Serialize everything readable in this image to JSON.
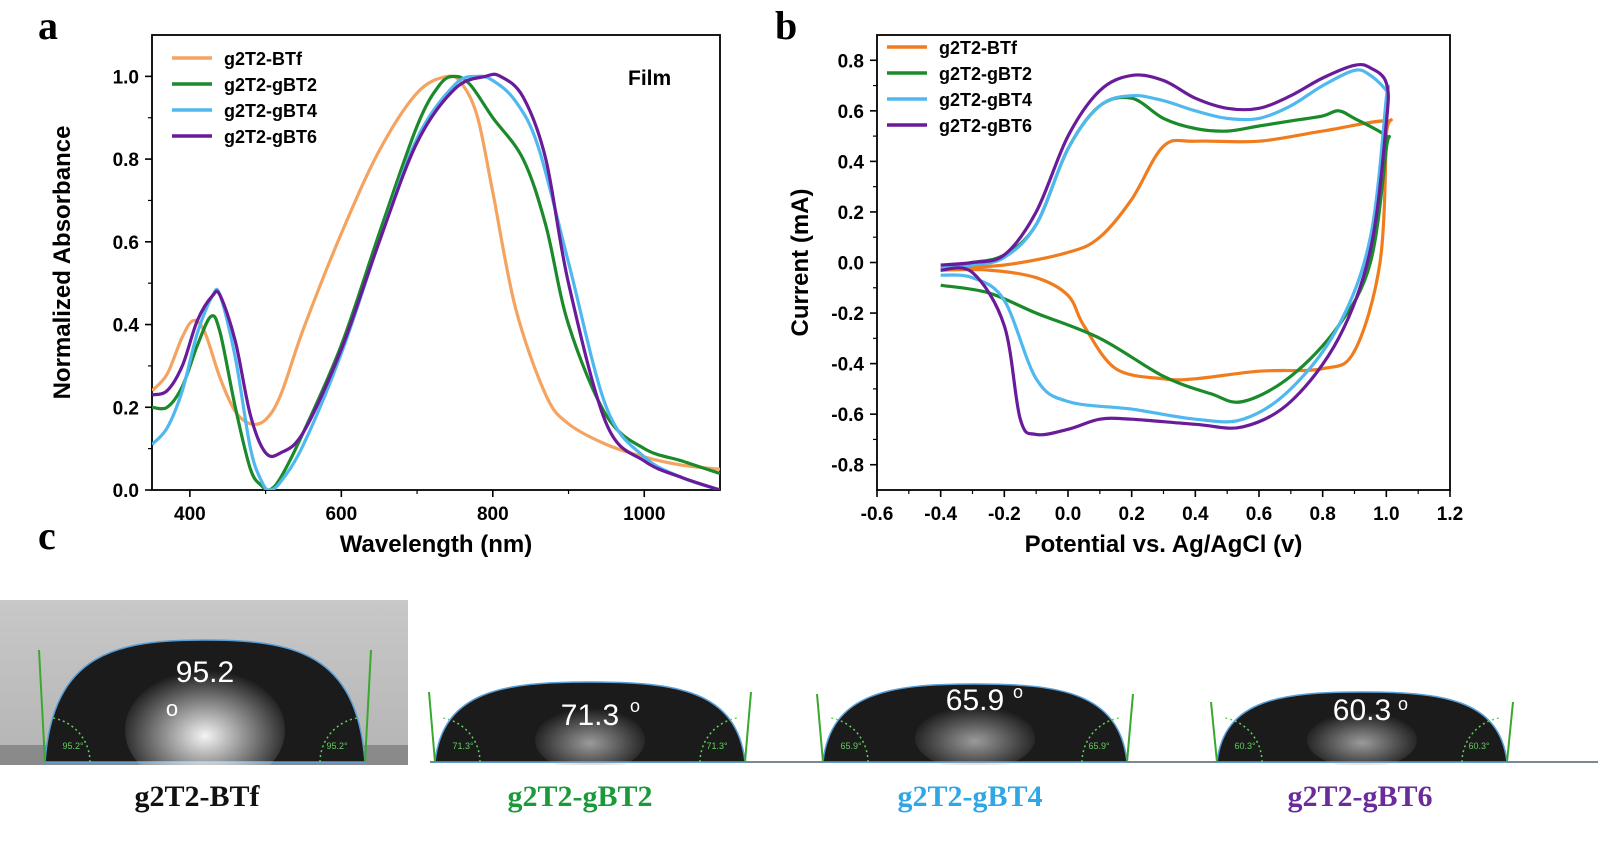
{
  "panel_labels": {
    "a": "a",
    "b": "b",
    "c": "c"
  },
  "chart_data": [
    {
      "type": "line",
      "panel": "a",
      "title": "",
      "annotation": "Film",
      "xlabel": "Wavelength (nm)",
      "ylabel": "Normalized Absorbance",
      "xlim": [
        350,
        1100
      ],
      "ylim": [
        0,
        1.1
      ],
      "xticks": [
        400,
        600,
        800,
        1000
      ],
      "yticks": [
        0.0,
        0.2,
        0.4,
        0.6,
        0.8,
        1.0
      ],
      "ytick_labels": [
        "0.0",
        "0.2",
        "0.4",
        "0.6",
        "0.8",
        "1.0"
      ],
      "legend_position": "top-left",
      "series": [
        {
          "name": "g2T2-BTf",
          "color": "#f4a460",
          "x": [
            350,
            370,
            390,
            405,
            420,
            440,
            460,
            480,
            500,
            520,
            550,
            600,
            650,
            700,
            740,
            760,
            780,
            800,
            830,
            870,
            900,
            950,
            1000,
            1050,
            1100
          ],
          "y": [
            0.24,
            0.28,
            0.37,
            0.41,
            0.38,
            0.27,
            0.19,
            0.16,
            0.17,
            0.23,
            0.39,
            0.62,
            0.82,
            0.96,
            1.0,
            0.98,
            0.9,
            0.72,
            0.44,
            0.23,
            0.16,
            0.11,
            0.08,
            0.06,
            0.05
          ]
        },
        {
          "name": "g2T2-gBT2",
          "color": "#1a8a2a",
          "x": [
            350,
            370,
            390,
            410,
            428,
            440,
            460,
            480,
            495,
            505,
            520,
            550,
            600,
            650,
            700,
            730,
            750,
            770,
            800,
            840,
            870,
            900,
            950,
            1000,
            1050,
            1100
          ],
          "y": [
            0.2,
            0.2,
            0.25,
            0.35,
            0.42,
            0.38,
            0.2,
            0.05,
            0.01,
            0.0,
            0.03,
            0.14,
            0.35,
            0.62,
            0.88,
            0.98,
            1.0,
            0.98,
            0.9,
            0.8,
            0.64,
            0.4,
            0.18,
            0.1,
            0.07,
            0.04
          ]
        },
        {
          "name": "g2T2-gBT4",
          "color": "#4fb8ef",
          "x": [
            350,
            370,
            390,
            410,
            430,
            440,
            460,
            480,
            495,
            505,
            520,
            550,
            600,
            650,
            700,
            750,
            780,
            800,
            830,
            860,
            900,
            950,
            1000,
            1050,
            1100
          ],
          "y": [
            0.11,
            0.15,
            0.24,
            0.38,
            0.47,
            0.47,
            0.32,
            0.1,
            0.02,
            0.0,
            0.02,
            0.11,
            0.33,
            0.6,
            0.85,
            0.98,
            1.0,
            0.99,
            0.94,
            0.83,
            0.55,
            0.2,
            0.08,
            0.03,
            0.0
          ]
        },
        {
          "name": "g2T2-gBT6",
          "color": "#6a1b9a",
          "x": [
            350,
            370,
            390,
            410,
            430,
            440,
            460,
            480,
            500,
            520,
            550,
            600,
            650,
            700,
            750,
            790,
            810,
            840,
            870,
            900,
            950,
            1000,
            1050,
            1100
          ],
          "y": [
            0.23,
            0.24,
            0.3,
            0.41,
            0.47,
            0.47,
            0.36,
            0.18,
            0.09,
            0.09,
            0.14,
            0.34,
            0.6,
            0.84,
            0.97,
            1.0,
            1.0,
            0.95,
            0.8,
            0.5,
            0.16,
            0.07,
            0.03,
            0.0
          ]
        }
      ]
    },
    {
      "type": "line",
      "panel": "b",
      "title": "",
      "xlabel": "Potential vs. Ag/AgCl (v)",
      "ylabel": "Current (mA)",
      "xlim": [
        -0.6,
        1.2
      ],
      "ylim": [
        -0.9,
        0.9
      ],
      "xticks": [
        -0.6,
        -0.4,
        -0.2,
        0.0,
        0.2,
        0.4,
        0.6,
        0.8,
        1.0,
        1.2
      ],
      "xtick_labels": [
        "-0.6",
        "-0.4",
        "-0.2",
        "0.0",
        "0.2",
        "0.4",
        "0.6",
        "0.8",
        "1.0",
        "1.2"
      ],
      "yticks": [
        -0.8,
        -0.6,
        -0.4,
        -0.2,
        0.0,
        0.2,
        0.4,
        0.6,
        0.8
      ],
      "ytick_labels": [
        "-0.8",
        "-0.6",
        "-0.4",
        "-0.2",
        "0.0",
        "0.2",
        "0.4",
        "0.6",
        "0.8"
      ],
      "legend_position": "top-left",
      "series": [
        {
          "name": "g2T2-BTf",
          "color": "#f07c1e",
          "x": [
            -0.4,
            -0.2,
            0.0,
            0.1,
            0.2,
            0.3,
            0.4,
            0.6,
            0.8,
            1.0,
            1.0,
            0.98,
            0.9,
            0.8,
            0.6,
            0.4,
            0.3,
            0.15,
            0.05,
            0.0,
            -0.1,
            -0.25,
            -0.4
          ],
          "y": [
            -0.02,
            -0.01,
            0.04,
            0.1,
            0.25,
            0.46,
            0.48,
            0.48,
            0.52,
            0.56,
            0.5,
            0.0,
            -0.35,
            -0.42,
            -0.43,
            -0.46,
            -0.46,
            -0.42,
            -0.25,
            -0.13,
            -0.06,
            -0.03,
            -0.03
          ]
        },
        {
          "name": "g2T2-gBT2",
          "color": "#1a8a2a",
          "x": [
            -0.4,
            -0.3,
            -0.2,
            -0.1,
            0.0,
            0.1,
            0.2,
            0.3,
            0.4,
            0.5,
            0.6,
            0.7,
            0.8,
            0.85,
            0.9,
            1.0,
            1.0,
            0.95,
            0.85,
            0.7,
            0.55,
            0.45,
            0.3,
            0.1,
            -0.1,
            -0.25,
            -0.4
          ],
          "y": [
            -0.02,
            0.0,
            0.03,
            0.15,
            0.45,
            0.62,
            0.65,
            0.57,
            0.53,
            0.52,
            0.54,
            0.56,
            0.58,
            0.6,
            0.57,
            0.5,
            0.45,
            0.0,
            -0.25,
            -0.45,
            -0.55,
            -0.52,
            -0.45,
            -0.3,
            -0.2,
            -0.12,
            -0.09
          ]
        },
        {
          "name": "g2T2-gBT4",
          "color": "#4fb8ef",
          "x": [
            -0.4,
            -0.3,
            -0.2,
            -0.1,
            0.0,
            0.1,
            0.2,
            0.3,
            0.4,
            0.5,
            0.6,
            0.7,
            0.8,
            0.9,
            0.95,
            1.0,
            1.0,
            0.95,
            0.85,
            0.7,
            0.55,
            0.4,
            0.2,
            0.0,
            -0.1,
            -0.2,
            -0.3,
            -0.4
          ],
          "y": [
            -0.02,
            -0.01,
            0.02,
            0.15,
            0.45,
            0.62,
            0.66,
            0.64,
            0.6,
            0.57,
            0.57,
            0.62,
            0.7,
            0.76,
            0.74,
            0.68,
            0.65,
            0.1,
            -0.25,
            -0.5,
            -0.62,
            -0.62,
            -0.58,
            -0.55,
            -0.46,
            -0.15,
            -0.06,
            -0.05
          ]
        },
        {
          "name": "g2T2-gBT6",
          "color": "#6a1b9a",
          "x": [
            -0.4,
            -0.3,
            -0.2,
            -0.1,
            0.0,
            0.1,
            0.2,
            0.3,
            0.4,
            0.5,
            0.6,
            0.7,
            0.8,
            0.9,
            0.95,
            1.0,
            1.0,
            0.95,
            0.85,
            0.7,
            0.55,
            0.4,
            0.2,
            0.1,
            0.0,
            -0.1,
            -0.15,
            -0.2,
            -0.3,
            -0.4
          ],
          "y": [
            -0.01,
            0.0,
            0.03,
            0.2,
            0.5,
            0.68,
            0.74,
            0.72,
            0.65,
            0.61,
            0.61,
            0.66,
            0.73,
            0.78,
            0.77,
            0.71,
            0.55,
            0.05,
            -0.3,
            -0.55,
            -0.65,
            -0.64,
            -0.62,
            -0.62,
            -0.66,
            -0.68,
            -0.62,
            -0.25,
            -0.04,
            -0.03
          ]
        }
      ]
    }
  ],
  "photos": [
    {
      "angle_label": "95.2",
      "angle_label_o": "o",
      "side_label": "95.2°",
      "caption": "g2T2-BTf",
      "caption_color": "#111111"
    },
    {
      "angle_label": "71.3",
      "angle_label_o": "o",
      "side_label": "71.3°",
      "caption": "g2T2-gBT2",
      "caption_color": "#1a9a3a"
    },
    {
      "angle_label": "65.9",
      "angle_label_o": "o",
      "side_label": "65.9°",
      "caption": "g2T2-gBT4",
      "caption_color": "#2fa6e6"
    },
    {
      "angle_label": "60.3",
      "angle_label_o": "o",
      "side_label": "60.3°",
      "caption": "g2T2-gBT6",
      "caption_color": "#6a2c9a"
    }
  ]
}
